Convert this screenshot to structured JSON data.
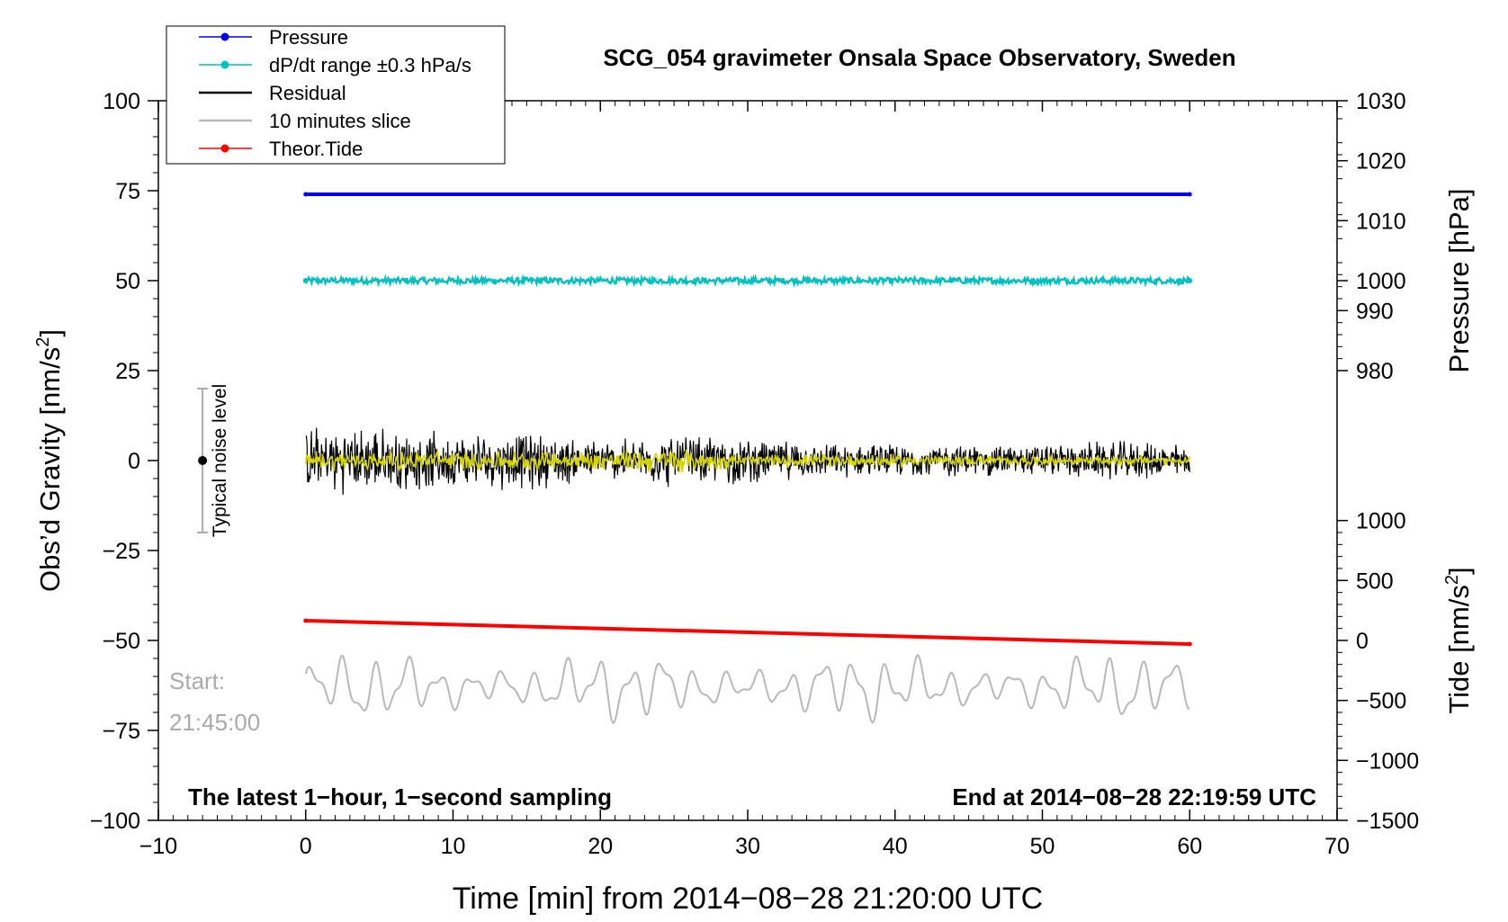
{
  "chart_data": {
    "type": "line",
    "title": "SCG_054 gravimeter Onsala Space Observatory, Sweden",
    "xlabel": "Time [min] from 2014−08−28 21:20:00 UTC",
    "ylabel": "Obs’d Gravity [nm/s",
    "ylabel_sup": "2",
    "ylabel_close": "]",
    "right_pressure_label": "Pressure [hPa]",
    "right_tide_label": "Tide [nm/s",
    "right_tide_sup": "2",
    "right_tide_close": "]",
    "xlim": [
      -10,
      70
    ],
    "ylim": [
      -100,
      100
    ],
    "x_ticks": [
      -10,
      0,
      10,
      20,
      30,
      40,
      50,
      60,
      70
    ],
    "y_ticks": [
      -100,
      -75,
      -50,
      -25,
      0,
      25,
      50,
      75,
      100
    ],
    "x_tick_labels": [
      "−10",
      "0",
      "10",
      "20",
      "30",
      "40",
      "50",
      "60",
      "70"
    ],
    "y_tick_labels": [
      "−100",
      "−75",
      "−50",
      "−25",
      "0",
      "25",
      "50",
      "75",
      "100"
    ],
    "pressure_axis": {
      "ticks": [
        980,
        990,
        1000,
        1010,
        1020,
        1030
      ],
      "tick_labels": [
        "980",
        "990",
        "1000",
        "1010",
        "1020",
        "1030"
      ],
      "gravity_equiv": [
        25,
        41.67,
        50,
        66.67,
        83.33,
        100
      ]
    },
    "tide_axis": {
      "ticks": [
        -1500,
        -1000,
        -500,
        0,
        500,
        1000
      ],
      "tick_labels": [
        "−1500",
        "−1000",
        "−500",
        "0",
        "500",
        "1000"
      ],
      "gravity_equiv": [
        -100,
        -83.33,
        -66.67,
        -50,
        -33.33,
        -16.67
      ]
    },
    "legend": {
      "position": "top-left",
      "entries": [
        {
          "label": "Pressure",
          "color": "#0000ee",
          "marker": "dot"
        },
        {
          "label": "dP/dt range ±0.3 hPa/s",
          "color": "#00c0c0",
          "marker": "dot"
        },
        {
          "label": "Residual",
          "color": "#000000",
          "marker": "line"
        },
        {
          "label": "10 minutes slice",
          "color": "#b8b8b8",
          "marker": "line"
        },
        {
          "label": "Theor.Tide",
          "color": "#ff0000",
          "marker": "dot"
        }
      ]
    },
    "series": [
      {
        "name": "Pressure",
        "color": "#0000ee",
        "x": [
          0,
          60
        ],
        "y": [
          74,
          74
        ]
      },
      {
        "name": "dP/dt range ±0.3 hPa/s",
        "color": "#00c0c0",
        "x": [
          0,
          60
        ],
        "y": [
          50,
          50
        ],
        "noise": 0.8
      },
      {
        "name": "Residual",
        "color": "#000000",
        "x": [
          0,
          60
        ],
        "center": 0,
        "envelope_x": [
          0,
          5,
          10,
          15,
          20,
          25,
          30,
          35,
          40,
          45,
          50,
          55,
          60
        ],
        "envelope_amp": [
          10,
          10,
          8,
          9,
          6,
          8,
          7,
          5,
          5,
          5,
          5,
          6,
          5
        ]
      },
      {
        "name": "Residual (yellow)",
        "color": "#d4d400",
        "x": [
          0,
          60
        ],
        "center": 0,
        "envelope_x": [
          0,
          5,
          10,
          15,
          20,
          25,
          30,
          35,
          40,
          45,
          50,
          55,
          60
        ],
        "envelope_amp": [
          3,
          3,
          3,
          3,
          3,
          4,
          2,
          2,
          2,
          1.5,
          1.5,
          1.5,
          1.5
        ]
      },
      {
        "name": "10 minutes slice",
        "color": "#b8b8b8",
        "x": [
          0,
          60
        ],
        "center": -63,
        "amplitude": 7
      },
      {
        "name": "Theor.Tide",
        "color": "#ff0000",
        "x": [
          0,
          60
        ],
        "y": [
          -44.5,
          -51
        ]
      }
    ],
    "annotations": {
      "noise_label": "Typical noise level",
      "noise_bar": {
        "x": -7,
        "center": 0,
        "low": -20,
        "high": 20
      },
      "start_label": "Start:",
      "start_time": "21:45:00",
      "bottom_left": "The latest 1−hour, 1−second sampling",
      "bottom_right": "End at 2014−08−28 22:19:59 UTC"
    }
  }
}
